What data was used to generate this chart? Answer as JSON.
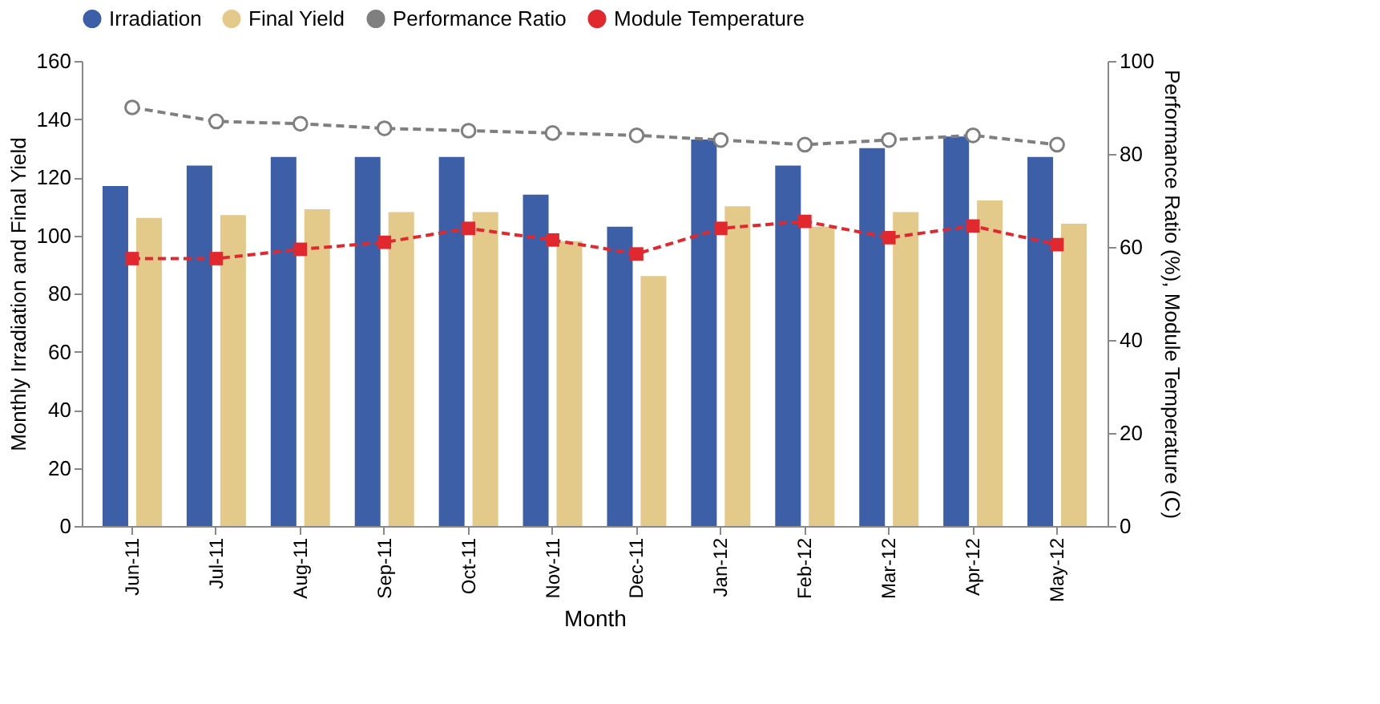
{
  "chart_data": {
    "type": "bar",
    "xlabel": "Month",
    "ylabel": "Monthly Irradiation and Final Yield",
    "y2label": "Performance Ratio (%), Module Temperature (C)",
    "categories": [
      "Jun-11",
      "Jul-11",
      "Aug-11",
      "Sep-11",
      "Oct-11",
      "Nov-11",
      "Dec-11",
      "Jan-12",
      "Feb-12",
      "Mar-12",
      "Apr-12",
      "May-12"
    ],
    "series": [
      {
        "name": "Irradiation",
        "color": "#3d5fa8",
        "values": [
          117,
          124,
          127,
          127,
          127,
          114,
          103,
          133,
          124,
          130,
          134,
          127
        ]
      },
      {
        "name": "Final Yield",
        "color": "#e3c98a",
        "values": [
          106,
          107,
          109,
          108,
          108,
          98,
          86,
          110,
          103,
          108,
          112,
          104
        ]
      },
      {
        "name": "Performance Ratio",
        "type": "line",
        "axis": "y2",
        "marker": "circle",
        "line_style": "dashed",
        "color": "#7f7f7f",
        "values": [
          90,
          87,
          86.5,
          85.5,
          85,
          84.5,
          84,
          83,
          82,
          83,
          84,
          82
        ]
      },
      {
        "name": "Module Temperature",
        "type": "line",
        "axis": "y2",
        "marker": "square",
        "line_style": "dashed",
        "color": "#e0282e",
        "values": [
          57.5,
          57.5,
          59.5,
          61,
          64,
          61.5,
          58.5,
          64,
          65.5,
          62,
          64.5,
          60.5
        ]
      }
    ],
    "ylim": [
      0,
      160
    ],
    "yticks": [
      0,
      20,
      40,
      60,
      80,
      100,
      120,
      140,
      160
    ],
    "y2lim": [
      0,
      100
    ],
    "y2ticks": [
      0,
      20,
      40,
      60,
      80,
      100
    ],
    "grid": false,
    "legend": "top"
  }
}
